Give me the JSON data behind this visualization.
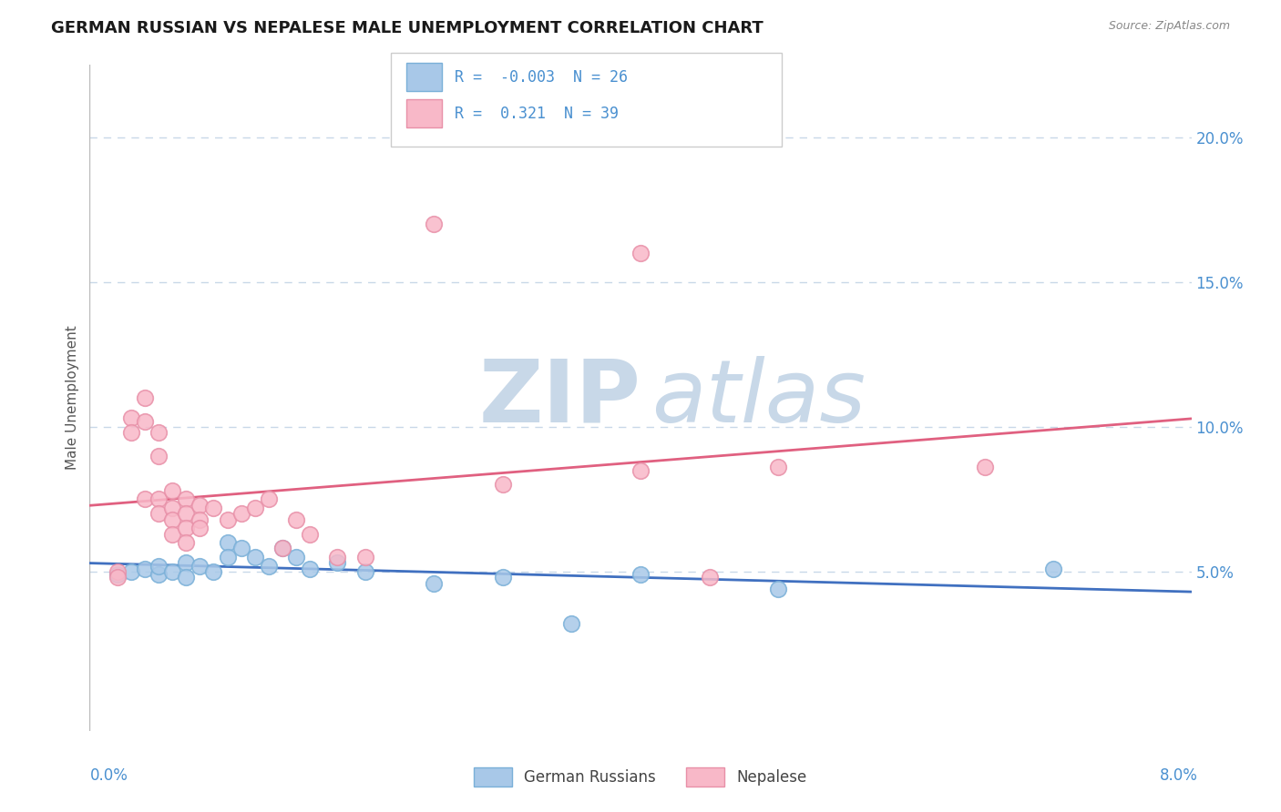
{
  "title": "GERMAN RUSSIAN VS NEPALESE MALE UNEMPLOYMENT CORRELATION CHART",
  "source": "Source: ZipAtlas.com",
  "ylabel": "Male Unemployment",
  "xlim": [
    0.0,
    0.08
  ],
  "ylim": [
    -0.005,
    0.225
  ],
  "yticks": [
    0.05,
    0.1,
    0.15,
    0.2
  ],
  "ytick_labels": [
    "5.0%",
    "10.0%",
    "15.0%",
    "20.0%"
  ],
  "german_russian_color": "#a8c8e8",
  "german_russian_edge": "#7ab0d8",
  "nepalese_color": "#f8b8c8",
  "nepalese_edge": "#e890a8",
  "german_russian_line_color": "#4070c0",
  "nepalese_line_color": "#e06080",
  "watermark_zip_color": "#c8d8e8",
  "watermark_atlas_color": "#c8d8e8",
  "background_color": "#ffffff",
  "grid_color": "#c8d8e8",
  "title_fontsize": 13,
  "axis_label_color": "#4a90d0",
  "ylabel_color": "#555555",
  "german_russian_R": -0.003,
  "nepalese_R": 0.321,
  "german_russian_N": 26,
  "nepalese_N": 39,
  "german_russian_points": [
    [
      0.002,
      0.049
    ],
    [
      0.003,
      0.05
    ],
    [
      0.004,
      0.051
    ],
    [
      0.005,
      0.049
    ],
    [
      0.005,
      0.052
    ],
    [
      0.006,
      0.05
    ],
    [
      0.007,
      0.053
    ],
    [
      0.007,
      0.048
    ],
    [
      0.008,
      0.052
    ],
    [
      0.009,
      0.05
    ],
    [
      0.01,
      0.06
    ],
    [
      0.01,
      0.055
    ],
    [
      0.011,
      0.058
    ],
    [
      0.012,
      0.055
    ],
    [
      0.013,
      0.052
    ],
    [
      0.014,
      0.058
    ],
    [
      0.015,
      0.055
    ],
    [
      0.016,
      0.051
    ],
    [
      0.018,
      0.053
    ],
    [
      0.02,
      0.05
    ],
    [
      0.025,
      0.046
    ],
    [
      0.03,
      0.048
    ],
    [
      0.035,
      0.032
    ],
    [
      0.04,
      0.049
    ],
    [
      0.05,
      0.044
    ],
    [
      0.07,
      0.051
    ]
  ],
  "nepalese_points": [
    [
      0.002,
      0.05
    ],
    [
      0.002,
      0.048
    ],
    [
      0.003,
      0.103
    ],
    [
      0.003,
      0.098
    ],
    [
      0.004,
      0.11
    ],
    [
      0.004,
      0.102
    ],
    [
      0.004,
      0.075
    ],
    [
      0.005,
      0.098
    ],
    [
      0.005,
      0.09
    ],
    [
      0.005,
      0.075
    ],
    [
      0.005,
      0.07
    ],
    [
      0.006,
      0.078
    ],
    [
      0.006,
      0.072
    ],
    [
      0.006,
      0.068
    ],
    [
      0.006,
      0.063
    ],
    [
      0.007,
      0.075
    ],
    [
      0.007,
      0.07
    ],
    [
      0.007,
      0.065
    ],
    [
      0.007,
      0.06
    ],
    [
      0.008,
      0.073
    ],
    [
      0.008,
      0.068
    ],
    [
      0.008,
      0.065
    ],
    [
      0.009,
      0.072
    ],
    [
      0.01,
      0.068
    ],
    [
      0.011,
      0.07
    ],
    [
      0.012,
      0.072
    ],
    [
      0.013,
      0.075
    ],
    [
      0.014,
      0.058
    ],
    [
      0.015,
      0.068
    ],
    [
      0.016,
      0.063
    ],
    [
      0.018,
      0.055
    ],
    [
      0.02,
      0.055
    ],
    [
      0.025,
      0.17
    ],
    [
      0.03,
      0.08
    ],
    [
      0.04,
      0.16
    ],
    [
      0.04,
      0.085
    ],
    [
      0.045,
      0.048
    ],
    [
      0.05,
      0.086
    ],
    [
      0.065,
      0.086
    ]
  ],
  "legend_R_color": "-0.003",
  "legend_N1": "26",
  "legend_R2": "0.321",
  "legend_N2": "39"
}
